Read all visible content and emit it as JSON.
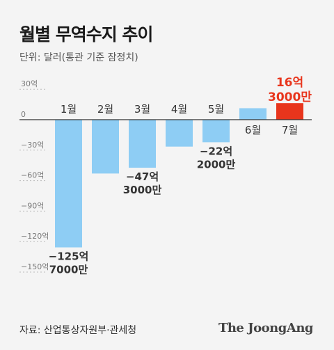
{
  "title": "월별 무역수지 추이",
  "unit_label": "단위: 달러(통관 기준 잠정치)",
  "source": "자료: 산업통상자원부·관세청",
  "brand": "The JoongAng",
  "colors": {
    "negative": "#8ecdf4",
    "positive": "#e8351c",
    "axis": "#333333",
    "tick": "#777777",
    "highlight_text": "#e8351c",
    "label_text": "#333333"
  },
  "chart_data": {
    "type": "bar",
    "categories": [
      "1월",
      "2월",
      "3월",
      "4월",
      "5월",
      "6월",
      "7월"
    ],
    "values": [
      -125.7,
      -53.0,
      -47.3,
      -26.5,
      -22.2,
      11.3,
      16.3
    ],
    "ylim": [
      -150,
      30
    ],
    "yticks": [
      30,
      0,
      -30,
      -60,
      -90,
      -120,
      -150
    ],
    "ytick_labels": [
      "30억",
      "0",
      "−30억",
      "−60억",
      "−90억",
      "−120억",
      "−150억"
    ],
    "annotations": [
      {
        "index": 0,
        "lines": [
          "−125억",
          "7000만"
        ]
      },
      {
        "index": 2,
        "lines": [
          "−47억",
          "3000만"
        ]
      },
      {
        "index": 4,
        "lines": [
          "−22억",
          "2000만"
        ]
      },
      {
        "index": 6,
        "lines": [
          "16억",
          "3000만"
        ]
      }
    ]
  }
}
